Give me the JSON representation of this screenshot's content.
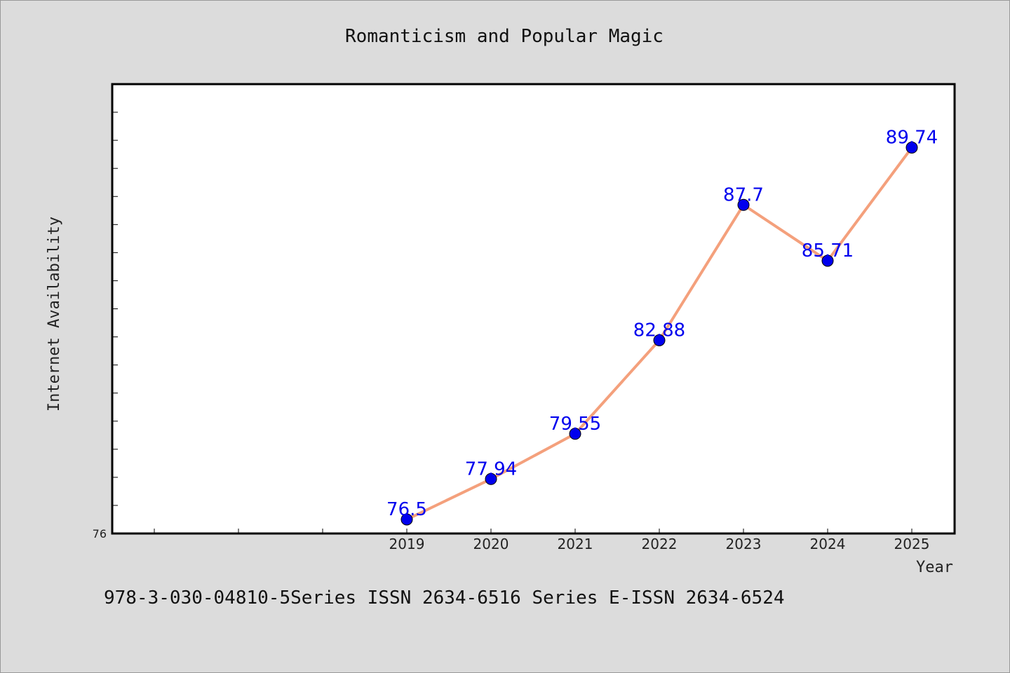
{
  "chart_data": {
    "type": "line",
    "title": "Romanticism and Popular Magic",
    "xlabel": "Year",
    "ylabel": "Internet Availability",
    "categories": [
      "2019",
      "2020",
      "2021",
      "2022",
      "2023",
      "2024",
      "2025"
    ],
    "series": [
      {
        "values": [
          76.5,
          77.94,
          79.55,
          82.88,
          87.7,
          85.71,
          89.74
        ]
      }
    ],
    "data_labels": [
      "76.5",
      "77.94",
      "79.55",
      "82.88",
      "87.7",
      "85.71",
      "89.74"
    ],
    "ytick_labels": [
      "76"
    ],
    "ylim": [
      76,
      92
    ],
    "grid": false,
    "legend": "none",
    "colors": {
      "line": "#f4a07c",
      "marker": "#0000ee",
      "data_label": "#0000ee"
    }
  },
  "footer": "978-3-030-04810-5Series ISSN 2634-6516 Series E-ISSN 2634-6524"
}
